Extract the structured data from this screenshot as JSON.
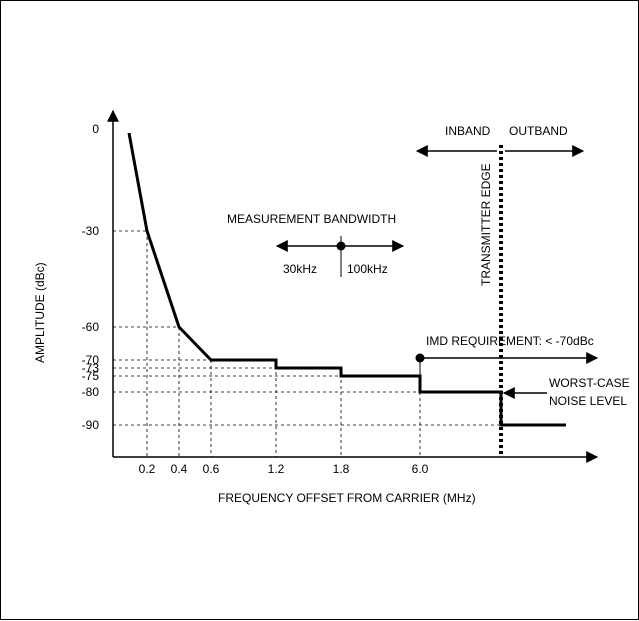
{
  "chart_data": {
    "type": "line",
    "xlabel": "FREQUENCY OFFSET FROM CARRIER (MHz)",
    "ylabel": "AMPLITUDE (dBc)",
    "x_ticks": [
      "0.2",
      "0.4",
      "0.6",
      "1.2",
      "1.8",
      "6.0"
    ],
    "y_ticks": [
      "0",
      "-30",
      "-60",
      "-70",
      "-73",
      "-75",
      "-80",
      "-90"
    ],
    "y_tick_values": [
      0,
      -30,
      -60,
      -70,
      -73,
      -75,
      -80,
      -90
    ],
    "series": [
      {
        "points": [
          {
            "x": "0.1",
            "y": -1
          },
          {
            "x": "0.2",
            "y": -30
          },
          {
            "x": "0.4",
            "y": -60
          },
          {
            "x": "0.6",
            "y": -70
          },
          {
            "x": "1.2",
            "y": -70
          },
          {
            "x": "1.2",
            "y": -73
          },
          {
            "x": "1.8",
            "y": -73
          },
          {
            "x": "1.8",
            "y": -75
          },
          {
            "x": "6.0",
            "y": -75
          },
          {
            "x": "6.0",
            "y": -80
          },
          {
            "x": "transmitter edge",
            "y": -80
          },
          {
            "x": "transmitter edge",
            "y": -90
          },
          {
            "x": "end",
            "y": -90
          }
        ]
      }
    ],
    "annotations": {
      "inband": "INBAND",
      "outband": "OUTBAND",
      "transmitter_edge": "TRANSMITTER EDGE",
      "measurement_bandwidth": "MEASUREMENT BANDWIDTH",
      "bw_left": "30kHz",
      "bw_right": "100kHz",
      "imd_requirement": "IMD REQUIREMENT: < -70dBc",
      "worst_case_1": "WORST-CASE",
      "worst_case_2": "NOISE LEVEL"
    },
    "grid": false,
    "legend": "none"
  }
}
